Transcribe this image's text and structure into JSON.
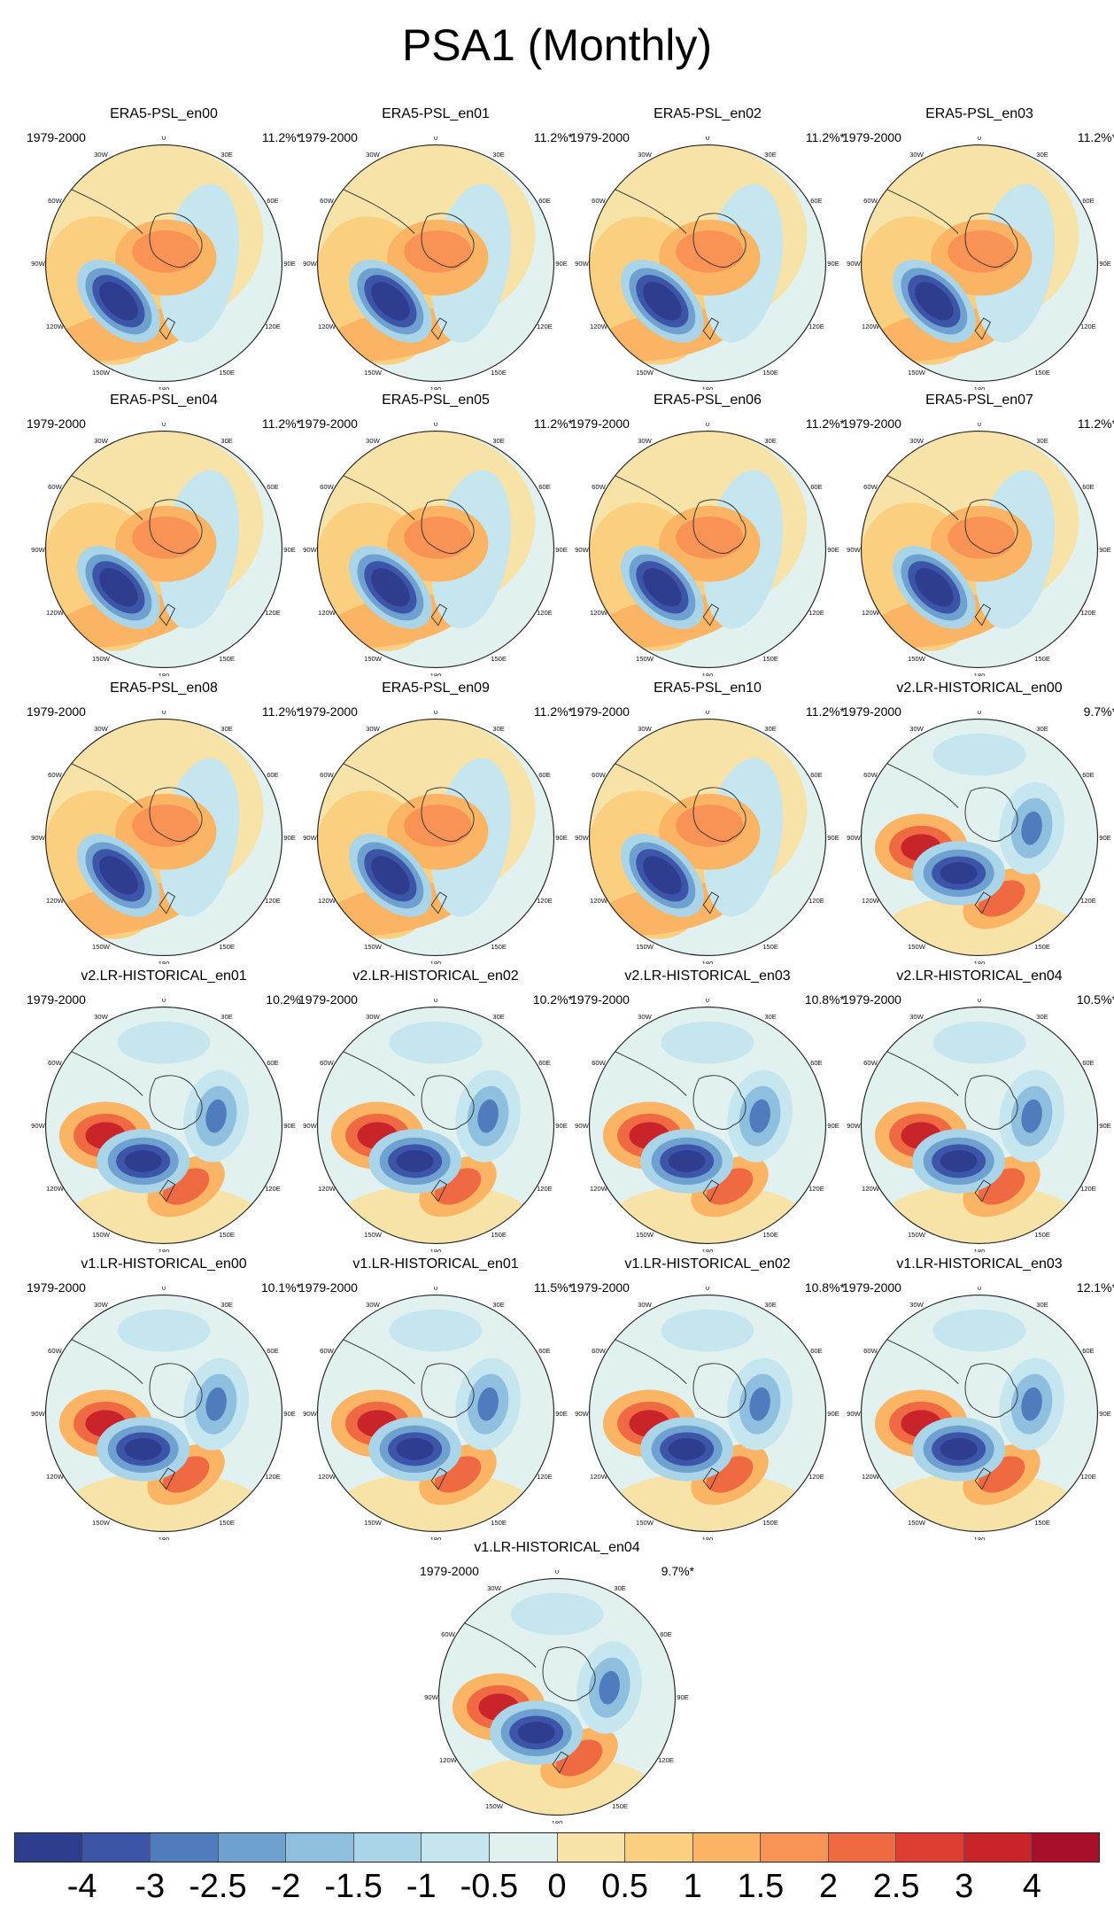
{
  "title": "PSA1 (Monthly)",
  "chart_data": {
    "type": "heatmap",
    "description_kind": "polar stereographic EOF maps of sea level pressure",
    "panels": [
      {
        "title": "ERA5-PSL_en00",
        "period": "1979-2000",
        "variance": "11.2%*",
        "pattern": "era5"
      },
      {
        "title": "ERA5-PSL_en01",
        "period": "1979-2000",
        "variance": "11.2%*",
        "pattern": "era5"
      },
      {
        "title": "ERA5-PSL_en02",
        "period": "1979-2000",
        "variance": "11.2%*",
        "pattern": "era5"
      },
      {
        "title": "ERA5-PSL_en03",
        "period": "1979-2000",
        "variance": "11.2%*",
        "pattern": "era5"
      },
      {
        "title": "ERA5-PSL_en04",
        "period": "1979-2000",
        "variance": "11.2%*",
        "pattern": "era5"
      },
      {
        "title": "ERA5-PSL_en05",
        "period": "1979-2000",
        "variance": "11.2%*",
        "pattern": "era5"
      },
      {
        "title": "ERA5-PSL_en06",
        "period": "1979-2000",
        "variance": "11.2%*",
        "pattern": "era5"
      },
      {
        "title": "ERA5-PSL_en07",
        "period": "1979-2000",
        "variance": "11.2%*",
        "pattern": "era5"
      },
      {
        "title": "ERA5-PSL_en08",
        "period": "1979-2000",
        "variance": "11.2%*",
        "pattern": "era5"
      },
      {
        "title": "ERA5-PSL_en09",
        "period": "1979-2000",
        "variance": "11.2%*",
        "pattern": "era5"
      },
      {
        "title": "ERA5-PSL_en10",
        "period": "1979-2000",
        "variance": "11.2%*",
        "pattern": "era5"
      },
      {
        "title": "v2.LR-HISTORICAL_en00",
        "period": "1979-2000",
        "variance": "9.7%*",
        "pattern": "model"
      },
      {
        "title": "v2.LR-HISTORICAL_en01",
        "period": "1979-2000",
        "variance": "10.2%",
        "pattern": "model"
      },
      {
        "title": "v2.LR-HISTORICAL_en02",
        "period": "1979-2000",
        "variance": "10.2%*",
        "pattern": "model"
      },
      {
        "title": "v2.LR-HISTORICAL_en03",
        "period": "1979-2000",
        "variance": "10.8%*",
        "pattern": "model"
      },
      {
        "title": "v2.LR-HISTORICAL_en04",
        "period": "1979-2000",
        "variance": "10.5%*",
        "pattern": "model"
      },
      {
        "title": "v1.LR-HISTORICAL_en00",
        "period": "1979-2000",
        "variance": "10.1%*",
        "pattern": "model"
      },
      {
        "title": "v1.LR-HISTORICAL_en01",
        "period": "1979-2000",
        "variance": "11.5%*",
        "pattern": "model"
      },
      {
        "title": "v1.LR-HISTORICAL_en02",
        "period": "1979-2000",
        "variance": "10.8%*",
        "pattern": "model"
      },
      {
        "title": "v1.LR-HISTORICAL_en03",
        "period": "1979-2000",
        "variance": "12.1%*",
        "pattern": "model"
      },
      {
        "title": "v1.LR-HISTORICAL_en04",
        "period": "1979-2000",
        "variance": "9.7%*",
        "pattern": "model"
      }
    ],
    "longitude_labels": [
      "0",
      "30E",
      "60E",
      "90E",
      "120E",
      "150E",
      "180",
      "150W",
      "120W",
      "90W",
      "60W",
      "30W"
    ],
    "colorbar": {
      "ticks": [
        "-4",
        "-3",
        "-2.5",
        "-2",
        "-1.5",
        "-1",
        "-0.5",
        "0",
        "0.5",
        "1",
        "1.5",
        "2",
        "2.5",
        "3",
        "4"
      ],
      "colors": [
        "#2f3d8f",
        "#3d55a8",
        "#4f7cbc",
        "#6fa1d0",
        "#8fbfdf",
        "#aad5e8",
        "#c5e6ef",
        "#e0f1ef",
        "#f7e3a8",
        "#fbcf80",
        "#fbb464",
        "#f99255",
        "#ef6a43",
        "#dd3e31",
        "#c8242a",
        "#a8102a"
      ]
    }
  }
}
